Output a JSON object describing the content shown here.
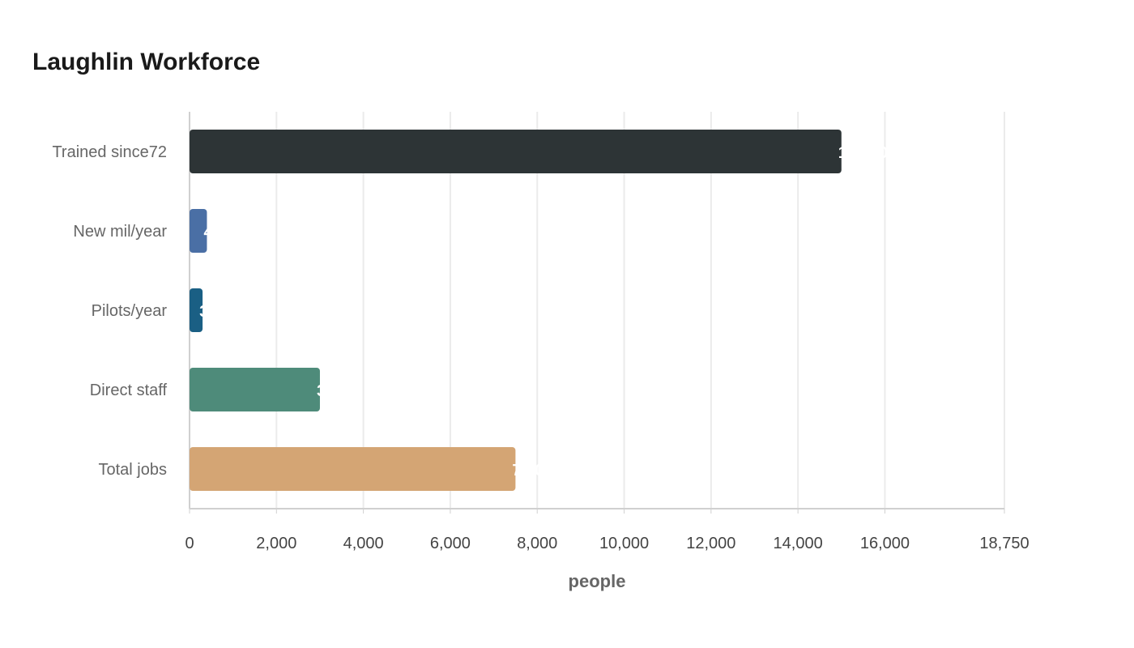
{
  "chart_data": {
    "type": "bar",
    "orientation": "horizontal",
    "title": "Laughlin Workforce",
    "xlabel": "people",
    "ylabel": "",
    "categories": [
      "Trained since72",
      "New mil/year",
      "Pilots/year",
      "Direct staff",
      "Total jobs"
    ],
    "values": [
      15000,
      400,
      300,
      3000,
      7500
    ],
    "data_labels": [
      "15,000",
      "400",
      "300",
      "3,000",
      "7,500"
    ],
    "colors": [
      "#2d3436",
      "#4a6fa5",
      "#1a5f84",
      "#4e8b7a",
      "#d4a574"
    ],
    "xlim": [
      0,
      18750
    ],
    "xticks": [
      0,
      2000,
      4000,
      6000,
      8000,
      10000,
      12000,
      14000,
      16000,
      18750
    ],
    "xtick_labels": [
      "0",
      "2,000",
      "4,000",
      "6,000",
      "8,000",
      "10,000",
      "12,000",
      "14,000",
      "16,000",
      "18,750"
    ],
    "grid": true,
    "legend": "none"
  }
}
